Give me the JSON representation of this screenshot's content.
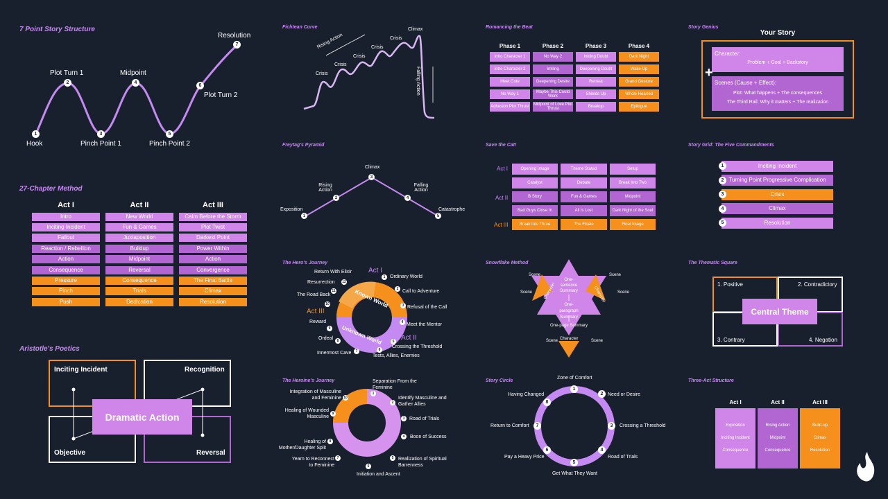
{
  "seven_point": {
    "title": "7 Point Story Structure",
    "labels": [
      "Hook",
      "Plot Turn 1",
      "Pinch Point 1",
      "Midpoint",
      "Pinch Point 2",
      "Plot Turn 2",
      "Resolution"
    ],
    "numbers": [
      "1",
      "2",
      "3",
      "4",
      "5",
      "6",
      "7"
    ]
  },
  "fichtean": {
    "title": "Fichtean Curve",
    "crises": [
      "Crisis",
      "Crisis",
      "Crisis",
      "Crisis",
      "Crisis"
    ],
    "climax": "Climax",
    "rising": "Rising Action",
    "falling": "Falling Action"
  },
  "romancing": {
    "title": "Romancing the Beat",
    "phases": [
      {
        "head": "Phase 1",
        "items": [
          "Intro Character 1",
          "Intro Character 2",
          "Meet Cute",
          "No Way 1",
          "Adhesion Plot Thrust"
        ]
      },
      {
        "head": "Phase 2",
        "items": [
          "No Way 2",
          "Inkling",
          "Deepening Desire",
          "Maybe This Could Work",
          "Midpoint of Love Plot Thrust"
        ]
      },
      {
        "head": "Phase 3",
        "items": [
          "Inkling Doubt",
          "Deepening Doubt",
          "Retreat",
          "Shields Up",
          "Breakup"
        ]
      },
      {
        "head": "Phase 4",
        "items": [
          "Dark Night",
          "Wake Up",
          "Grand Gesture",
          "Whole Hearted",
          "Epilogue"
        ]
      }
    ]
  },
  "story_genius": {
    "title": "Story Genius",
    "heading": "Your Story",
    "char_head": "Character:",
    "char_text": "Problem + Goal + Backstory",
    "scene_head": "Scenes (Cause + Effect):",
    "scene_l1": "Plot: What happens + The consequences",
    "scene_l2": "The Third Rail: Why it matters + The realization",
    "plus": "+"
  },
  "freytag": {
    "title": "Freytag's Pyramid",
    "labels": [
      "Exposition",
      "Rising Action",
      "Climax",
      "Falling Action",
      "Catastrophe"
    ],
    "numbers": [
      "1",
      "2",
      "3",
      "4",
      "5"
    ]
  },
  "save_cat": {
    "title": "Save the Cat!",
    "acts": [
      "Act I",
      "Act II",
      "Act III"
    ],
    "rows": [
      [
        "Opening Image",
        "Theme Stated",
        "Setup"
      ],
      [
        "Catalyst",
        "Debate",
        "Break Into Two"
      ],
      [
        "B Story",
        "Fun & Games",
        "Midpoint"
      ],
      [
        "Bad Guys Close In",
        "All is Lost",
        "Dark Night of the Soul"
      ],
      [
        "Break Into Three",
        "The Finale",
        "Final Image"
      ]
    ]
  },
  "story_grid": {
    "title": "Story Grid: The Five Commandments",
    "items": [
      {
        "n": "1",
        "t": "Inciting Incident"
      },
      {
        "n": "2",
        "t": "Turning Point Progressive Complication"
      },
      {
        "n": "3",
        "t": "Crisis"
      },
      {
        "n": "4",
        "t": "Climax"
      },
      {
        "n": "5",
        "t": "Resolution"
      }
    ]
  },
  "ch27": {
    "title": "27-Chapter Method",
    "cols": [
      {
        "head": "Act I",
        "items": [
          "Intro",
          "Inciting Incident",
          "Fallout",
          "Reaction / Rebellion",
          "Action",
          "Consequence",
          "Pressure",
          "Pinch",
          "Push"
        ]
      },
      {
        "head": "Act II",
        "items": [
          "New World",
          "Fun & Games",
          "Juxtaposition",
          "Buildup",
          "Midpoint",
          "Reversal",
          "Consequence",
          "Trials",
          "Dedication"
        ]
      },
      {
        "head": "Act III",
        "items": [
          "Calm Before the Storm",
          "Plot Twist",
          "Darkest Point",
          "Power Within",
          "Action",
          "Convergence",
          "The Final Battle",
          "Climax",
          "Resolution"
        ]
      }
    ]
  },
  "hero": {
    "title": "The Hero's Journey",
    "act1": "Act I",
    "act2": "Act II",
    "act3": "Act III",
    "known": "Known World",
    "unknown": "Unknown World",
    "steps": [
      "Ordinary World",
      "Call to Adventure",
      "Refusal of the Call",
      "Meet the Mentor",
      "Crossing the Threshold",
      "Tests, Allies, Enemies",
      "Innermost Cave",
      "Ordeal",
      "Reward",
      "The Road Back",
      "Resurrection",
      "Return With Elixir"
    ],
    "numbers": [
      "1",
      "2",
      "3",
      "4",
      "5",
      "6",
      "7",
      "8",
      "9",
      "10",
      "11",
      "12"
    ]
  },
  "snowflake": {
    "title": "Snowflake Method",
    "scene": "Scene",
    "character": "Character",
    "s1": "One-sentence Summary",
    "s2": "One-paragraph Summary",
    "s3": "One-page Summary"
  },
  "thematic": {
    "title": "The Thematic Square",
    "positive": "1. Positive",
    "contradictory": "2. Contradictory",
    "contrary": "3. Contrary",
    "negation": "4. Negation",
    "center": "Central Theme"
  },
  "aristotle": {
    "title": "Aristotle's Poetics",
    "inciting": "Inciting Incident",
    "recognition": "Recognition",
    "objective": "Objective",
    "reversal": "Reversal",
    "center": "Dramatic Action"
  },
  "heroine": {
    "title": "The Heroine's Journey",
    "steps": [
      "Separation From the Feminine",
      "Identify Masculine and Gather Allies",
      "Road of Trials",
      "Boon of Success",
      "Realization of Spiritual Barrenness",
      "Initiation and Ascent",
      "Yearn to Reconnect to Feminine",
      "Healing of Mother/Daughter Split",
      "Healing of Wounded Masculine",
      "Integration of Masculine and Feminine"
    ],
    "numbers": [
      "1",
      "2",
      "3",
      "4",
      "5",
      "6",
      "7",
      "8",
      "9",
      "10"
    ]
  },
  "story_circle": {
    "title": "Story Circle",
    "steps": [
      "Zone of Comfort",
      "Need or Desire",
      "Crossing a Threshold",
      "Road of Trials",
      "Get What They Want",
      "Pay a Heavy Price",
      "Return to Comfort",
      "Having Changed"
    ],
    "numbers": [
      "1",
      "2",
      "3",
      "4",
      "5",
      "6",
      "7",
      "8"
    ]
  },
  "three_act": {
    "title": "Three-Act Structure",
    "cols": [
      {
        "head": "Act I",
        "items": [
          "Exposition",
          "Inciting Incident",
          "Consequence"
        ]
      },
      {
        "head": "Act II",
        "items": [
          "Rising Action",
          "Midpoint",
          "Consequence"
        ]
      },
      {
        "head": "Act III",
        "items": [
          "Build-up",
          "Climax",
          "Resolution"
        ]
      }
    ]
  },
  "colors": {
    "background": "#19202d",
    "purple": "#cf86e8",
    "purple_dark": "#b266d2",
    "orange": "#f5901d",
    "title": "#c58af2"
  },
  "logo_icon": "flame-logo-icon"
}
